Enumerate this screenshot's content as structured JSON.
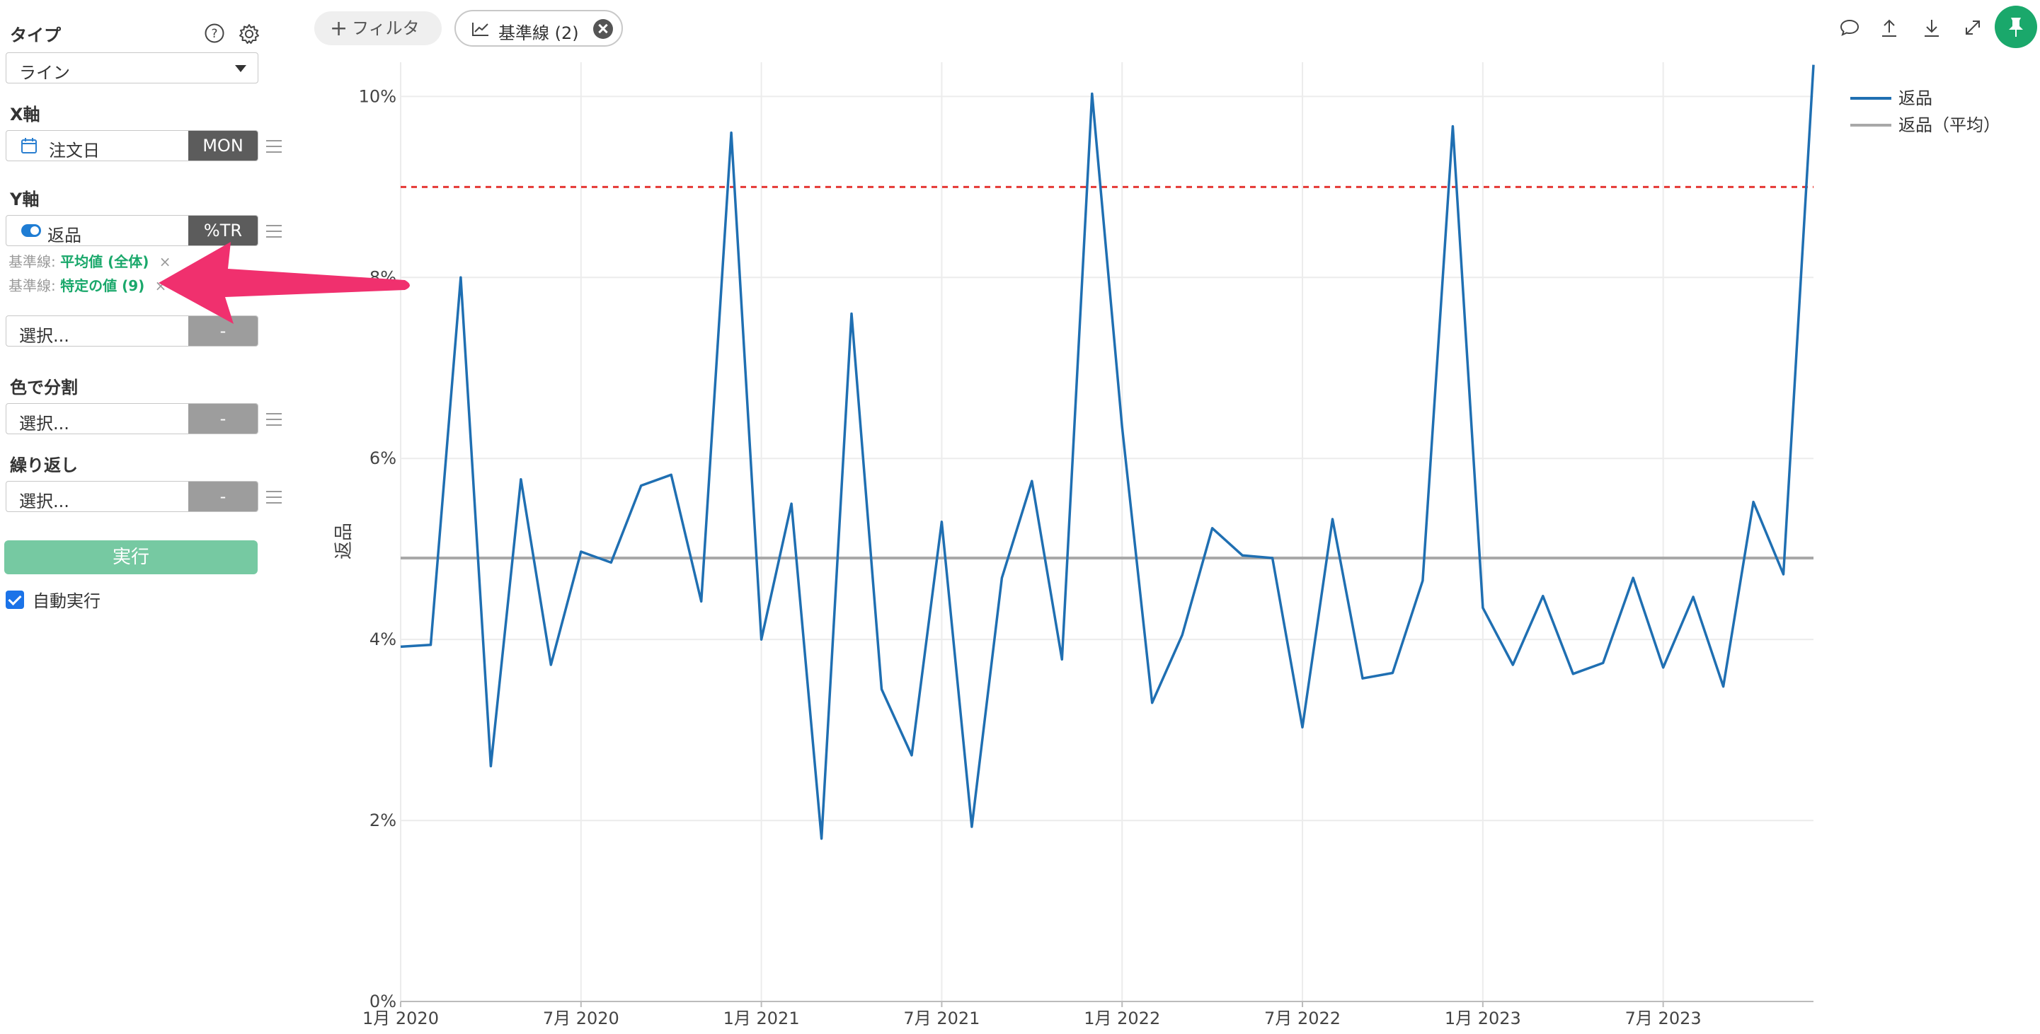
{
  "sidebar": {
    "type_label": "タイプ",
    "type_value": "ライン",
    "xaxis_label": "X軸",
    "xaxis_field": "注文日",
    "xaxis_tag": "MON",
    "yaxis_label": "Y軸",
    "yaxis_field": "返品",
    "yaxis_tag": "%TR",
    "baselines": [
      {
        "prefix": "基準線:",
        "value": "平均値 (全体)"
      },
      {
        "prefix": "基準線:",
        "value": "特定の値 (9)"
      }
    ],
    "extra_select_placeholder": "選択...",
    "extra_select_tag": "-",
    "color_label": "色で分割",
    "color_placeholder": "選択...",
    "color_tag": "-",
    "repeat_label": "繰り返し",
    "repeat_placeholder": "選択...",
    "repeat_tag": "-",
    "run_label": "実行",
    "auto_run_label": "自動実行",
    "close_symbol": "×"
  },
  "toolbar": {
    "filter_label": "フィルタ",
    "baseline_chip_label": "基準線 (2)"
  },
  "colors": {
    "series": "#1f6fb2",
    "average": "#a8a8a8",
    "threshold": "#e53935",
    "accent": "#1aa86b",
    "arrow": "#f0306e"
  },
  "chart_data": {
    "type": "line",
    "ylabel": "返品",
    "ylim": [
      0,
      10.3
    ],
    "yticks": [
      0,
      2,
      4,
      6,
      8,
      10
    ],
    "ytick_labels": [
      "0%",
      "2%",
      "4%",
      "6%",
      "8%",
      "10%"
    ],
    "xlim": [
      "2020-01",
      "2023-12"
    ],
    "xticks": [
      "2020-01",
      "2020-07",
      "2021-01",
      "2021-07",
      "2022-01",
      "2022-07",
      "2023-01",
      "2023-07"
    ],
    "xtick_labels": [
      "1月 2020",
      "7月 2020",
      "1月 2021",
      "7月 2021",
      "1月 2022",
      "7月 2022",
      "1月 2023",
      "7月 2023"
    ],
    "grid": true,
    "legend_position": "top-right",
    "legend": [
      "返品",
      "返品（平均）"
    ],
    "series": [
      {
        "name": "返品",
        "x": [
          "2020-01",
          "2020-02",
          "2020-03",
          "2020-04",
          "2020-05",
          "2020-06",
          "2020-07",
          "2020-08",
          "2020-09",
          "2020-10",
          "2020-11",
          "2020-12",
          "2021-01",
          "2021-02",
          "2021-03",
          "2021-04",
          "2021-05",
          "2021-06",
          "2021-07",
          "2021-08",
          "2021-09",
          "2021-10",
          "2021-11",
          "2021-12",
          "2022-01",
          "2022-02",
          "2022-03",
          "2022-04",
          "2022-05",
          "2022-06",
          "2022-07",
          "2022-08",
          "2022-09",
          "2022-10",
          "2022-11",
          "2022-12",
          "2023-01",
          "2023-02",
          "2023-03",
          "2023-04",
          "2023-05",
          "2023-06",
          "2023-07",
          "2023-08",
          "2023-09",
          "2023-10",
          "2023-11",
          "2023-12"
        ],
        "values": [
          3.92,
          3.94,
          8.0,
          2.6,
          5.77,
          3.72,
          4.97,
          4.85,
          5.7,
          5.82,
          4.42,
          9.6,
          4.0,
          5.5,
          1.8,
          7.6,
          3.45,
          2.72,
          5.3,
          1.93,
          4.68,
          5.75,
          3.78,
          10.03,
          6.35,
          3.3,
          4.05,
          5.23,
          4.93,
          4.9,
          3.03,
          5.33,
          3.57,
          3.63,
          4.65,
          9.67,
          4.35,
          3.72,
          4.48,
          3.62,
          3.74,
          4.68,
          3.69,
          4.47,
          3.48,
          5.52,
          4.72,
          10.35
        ]
      },
      {
        "name": "返品（平均）",
        "constant": 4.9
      }
    ],
    "reference_lines": [
      {
        "value": 9.0
      }
    ]
  }
}
